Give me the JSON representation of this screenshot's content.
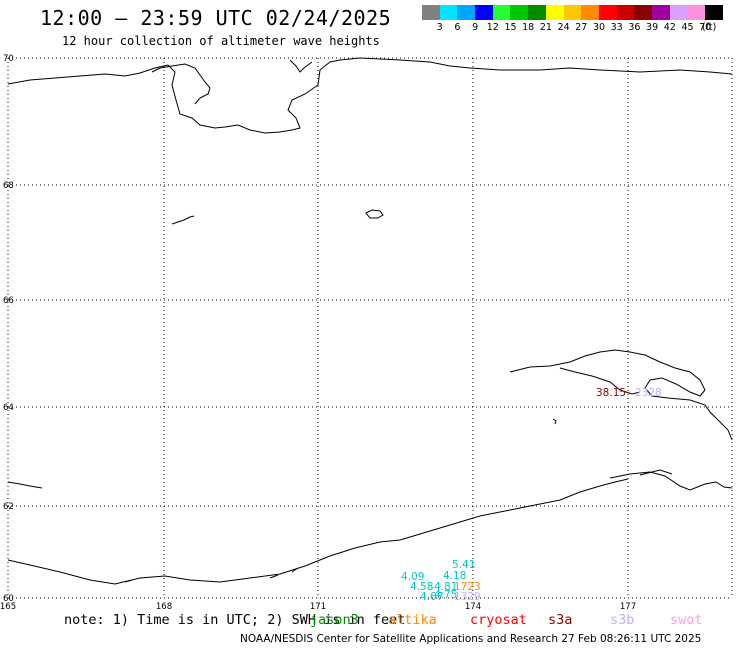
{
  "header": {
    "title": "12:00 – 23:59 UTC 02/24/2025",
    "subtitle": "12 hour collection of altimeter wave heights"
  },
  "legend": {
    "colors": [
      "#808080",
      "#00e5ff",
      "#00a6ff",
      "#0000ff",
      "#22ff33",
      "#00c800",
      "#008c00",
      "#ffff00",
      "#ffc800",
      "#ff8c00",
      "#ff0000",
      "#c80000",
      "#8c0000",
      "#a000a0",
      "#d8a0ff",
      "#ff90e0",
      "#000000"
    ],
    "labels": [
      "3",
      "6",
      "9",
      "12",
      "15",
      "18",
      "21",
      "24",
      "27",
      "30",
      "33",
      "36",
      "39",
      "42",
      "45",
      "70",
      "(ft)"
    ]
  },
  "map": {
    "lat_labels": [
      "70",
      "68",
      "66",
      "64",
      "62",
      "60"
    ],
    "lon_labels": [
      "165",
      "168",
      "171",
      "174",
      "177"
    ],
    "observations": [
      {
        "text": "38.15",
        "color": "#8c0000"
      },
      {
        "text": "2328",
        "color": "#c0b0ff"
      },
      {
        "text": "5.41",
        "color": "#00c8c8"
      },
      {
        "text": "4.18",
        "color": "#00c8c8"
      },
      {
        "text": "4.09",
        "color": "#00c8c8"
      },
      {
        "text": "4.58",
        "color": "#00c8c8"
      },
      {
        "text": "4.81",
        "color": "#00c8c8"
      },
      {
        "text": "4.67",
        "color": "#00c8c8"
      },
      {
        "text": "4.75",
        "color": "#00c8c8"
      },
      {
        "text": "1723",
        "color": "#ff8c00"
      },
      {
        "text": "1329",
        "color": "#c0b0ff"
      }
    ]
  },
  "footer": {
    "note": "note: 1) Time is in UTC; 2) SWH is in feet",
    "satellites": [
      {
        "name": "jason3",
        "color": "#008c00"
      },
      {
        "name": "altika",
        "color": "#ff8c00"
      },
      {
        "name": "cryosat",
        "color": "#ff0000"
      },
      {
        "name": "s3a",
        "color": "#8c0000"
      },
      {
        "name": "s3b",
        "color": "#c0b0ff"
      },
      {
        "name": "swot",
        "color": "#ffa0e0"
      }
    ],
    "credit": "NOAA/NESDIS Center for Satellite Applications and Research    27 Feb 08:26:11 UTC 2025"
  }
}
